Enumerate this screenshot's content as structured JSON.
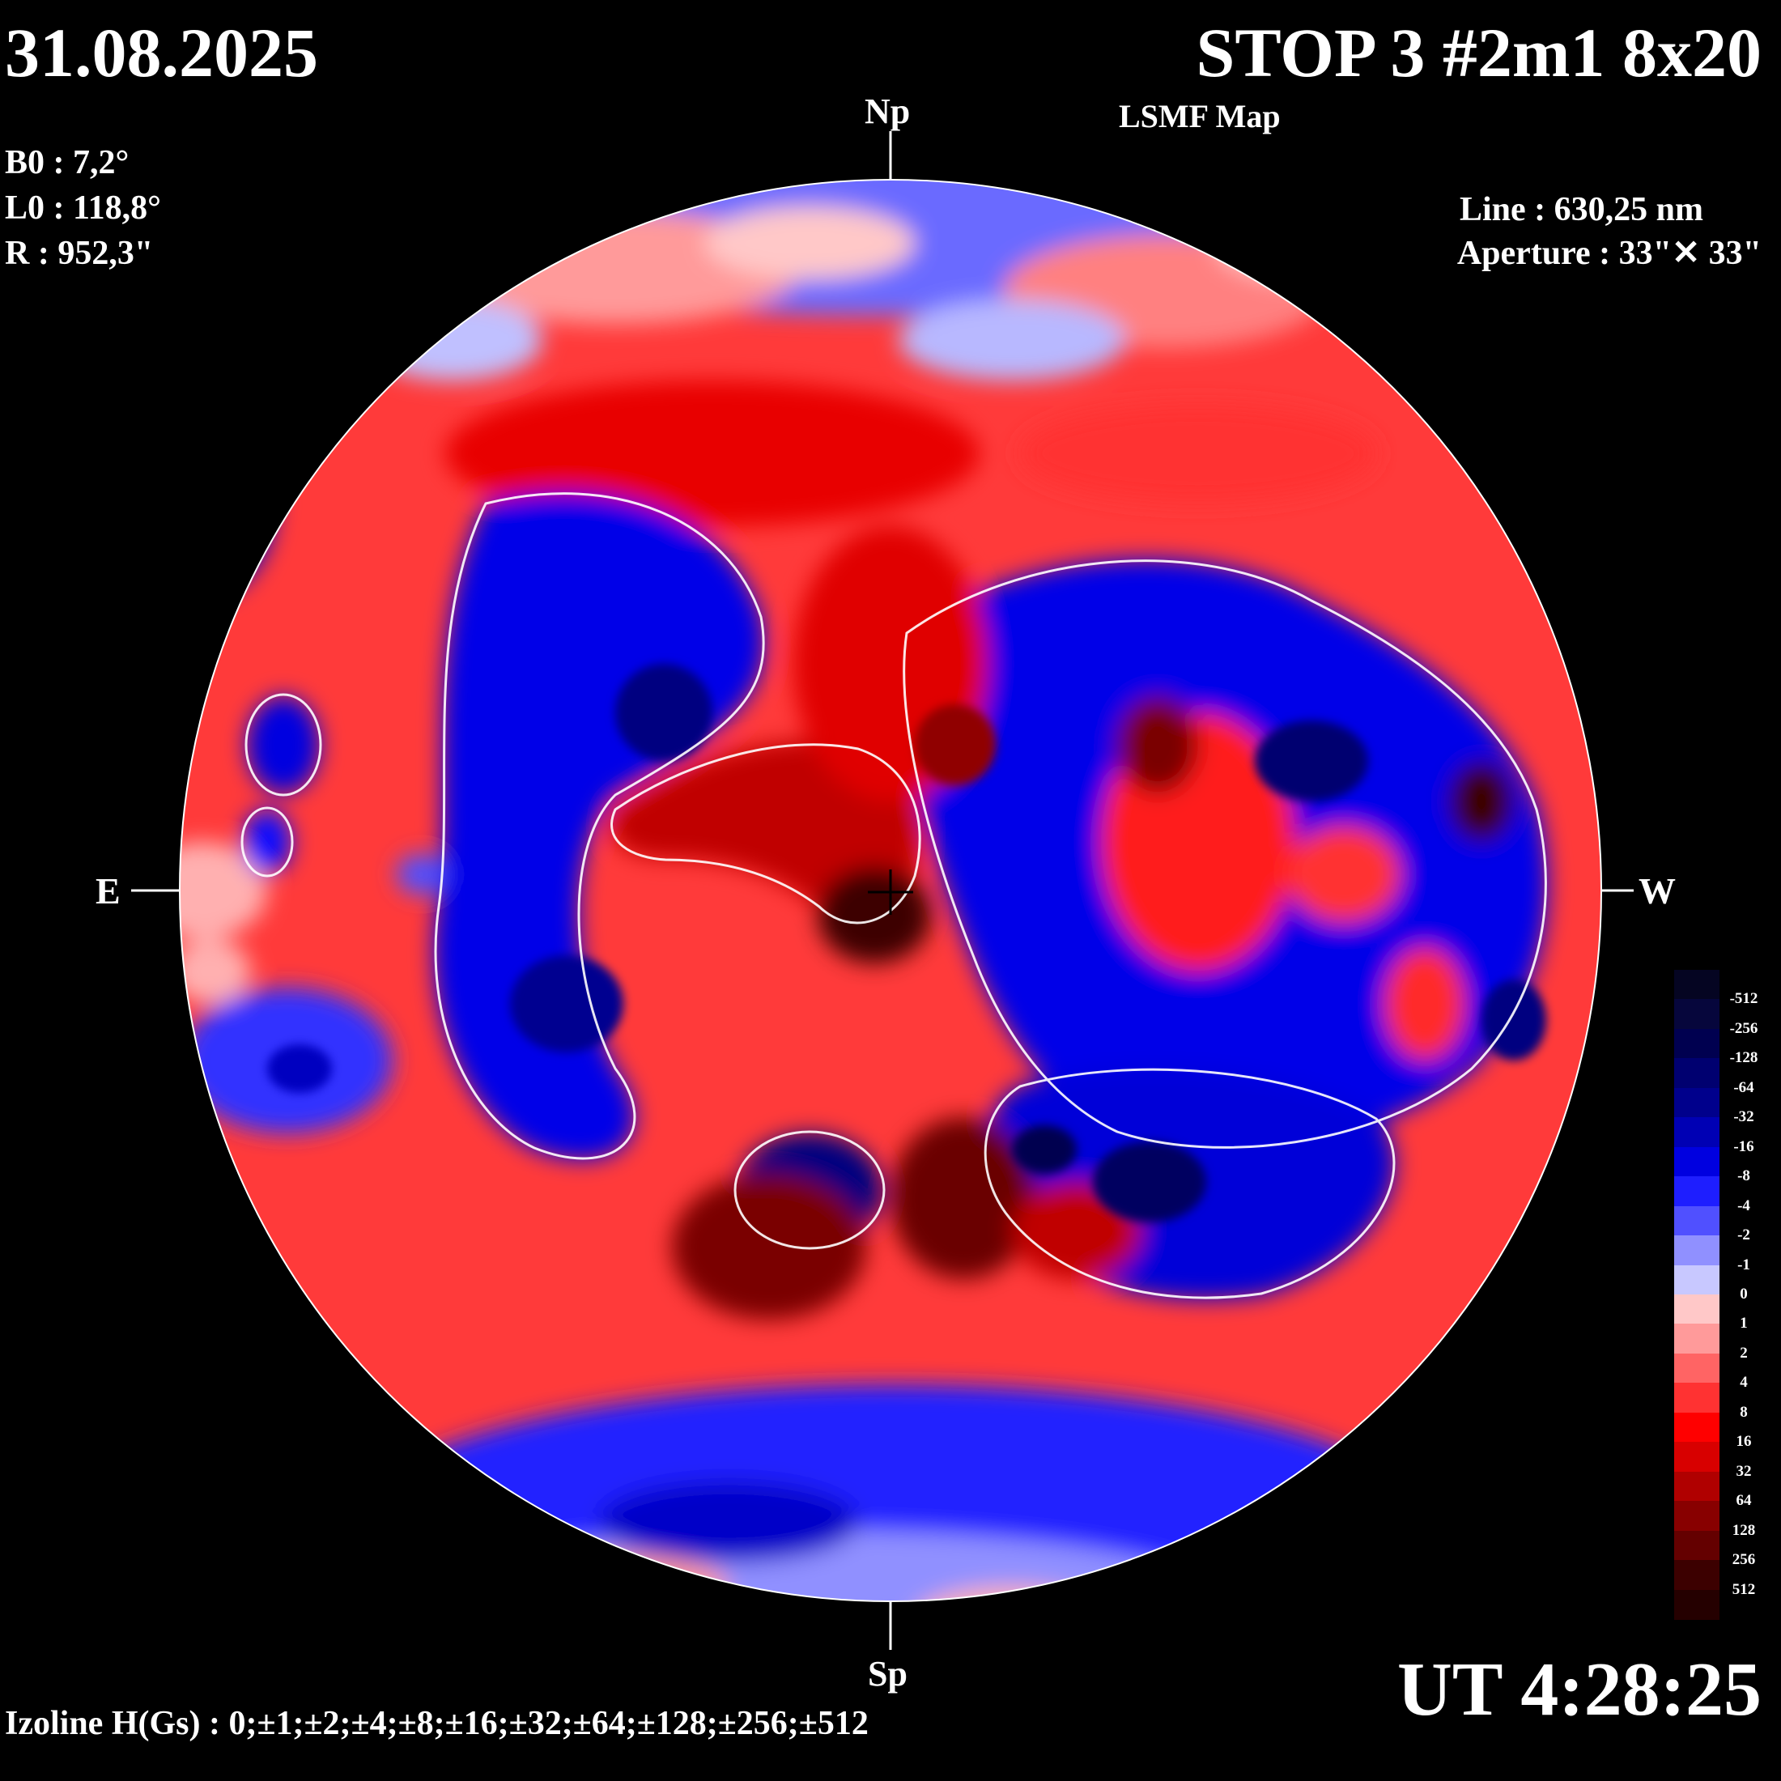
{
  "header": {
    "date": "31.08.2025",
    "title": "STOP 3 #2m1 8x20",
    "subtitle": "LSMF  Map"
  },
  "ephemeris": {
    "b0": "B0 : 7,2°",
    "l0": "L0 : 118,8°",
    "r": "R  : 952,3\""
  },
  "instrument": {
    "line": "Line :  630,25 nm",
    "aperture": "Aperture : 33\"✕ 33\""
  },
  "orientation": {
    "north": "Np",
    "south": "Sp",
    "east": "E",
    "west": "W"
  },
  "time": "UT 4:28:25",
  "izoline": "Izoline H(Gs) : 0;±1;±2;±4;±8;±16;±32;±64;±128;±256;±512",
  "legend": {
    "labels": [
      "-512",
      "-256",
      "-128",
      "-64",
      "-32",
      "-16",
      "-8",
      "-4",
      "-2",
      "-1",
      "0",
      "1",
      "2",
      "4",
      "8",
      "16",
      "32",
      "64",
      "128",
      "256",
      "512"
    ],
    "colors": [
      "#050522",
      "#06063c",
      "#000050",
      "#000070",
      "#00008c",
      "#0000b4",
      "#0000e0",
      "#1e1eff",
      "#5050ff",
      "#9090ff",
      "#c8c8ff",
      "#ffc8c8",
      "#ff9a9a",
      "#ff6464",
      "#ff3232",
      "#ff0000",
      "#d80000",
      "#b00000",
      "#880000",
      "#640000",
      "#3c0000",
      "#250000"
    ]
  },
  "map_colors": {
    "positive": "#ff0000",
    "positive_strong": "#880000",
    "negative": "#0000e0",
    "negative_strong": "#000060",
    "neutral_pos": "#ffc0c0",
    "neutral_neg": "#c8c8ff",
    "contour": "#ffffff"
  }
}
